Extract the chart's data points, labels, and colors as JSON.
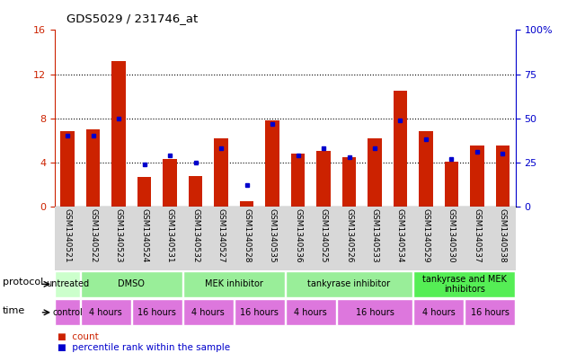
{
  "title": "GDS5029 / 231746_at",
  "samples": [
    "GSM1340521",
    "GSM1340522",
    "GSM1340523",
    "GSM1340524",
    "GSM1340531",
    "GSM1340532",
    "GSM1340527",
    "GSM1340528",
    "GSM1340535",
    "GSM1340536",
    "GSM1340525",
    "GSM1340526",
    "GSM1340533",
    "GSM1340534",
    "GSM1340529",
    "GSM1340530",
    "GSM1340537",
    "GSM1340538"
  ],
  "count_values": [
    6.8,
    7.0,
    13.2,
    2.7,
    4.3,
    2.8,
    6.2,
    0.5,
    7.8,
    4.8,
    5.0,
    4.5,
    6.2,
    10.5,
    6.8,
    4.1,
    5.5,
    5.5
  ],
  "percentile_values": [
    40,
    40,
    50,
    24,
    29,
    25,
    33,
    12,
    47,
    29,
    33,
    28,
    33,
    49,
    38,
    27,
    31,
    30
  ],
  "ylim_left": [
    0,
    16
  ],
  "ylim_right": [
    0,
    100
  ],
  "yticks_left": [
    0,
    4,
    8,
    12,
    16
  ],
  "yticks_right": [
    0,
    25,
    50,
    75,
    100
  ],
  "bar_color": "#cc2200",
  "dot_color": "#0000cc",
  "protocol_groups": [
    {
      "label": "untreated",
      "start": 0,
      "end": 1,
      "color": "#ccffcc"
    },
    {
      "label": "DMSO",
      "start": 1,
      "end": 5,
      "color": "#99ee99"
    },
    {
      "label": "MEK inhibitor",
      "start": 5,
      "end": 9,
      "color": "#99ee99"
    },
    {
      "label": "tankyrase inhibitor",
      "start": 9,
      "end": 14,
      "color": "#99ee99"
    },
    {
      "label": "tankyrase and MEK\ninhibitors",
      "start": 14,
      "end": 18,
      "color": "#55ee55"
    }
  ],
  "time_groups": [
    {
      "label": "control",
      "start": 0,
      "end": 1
    },
    {
      "label": "4 hours",
      "start": 1,
      "end": 3
    },
    {
      "label": "16 hours",
      "start": 3,
      "end": 5
    },
    {
      "label": "4 hours",
      "start": 5,
      "end": 7
    },
    {
      "label": "16 hours",
      "start": 7,
      "end": 9
    },
    {
      "label": "4 hours",
      "start": 9,
      "end": 11
    },
    {
      "label": "16 hours",
      "start": 11,
      "end": 14
    },
    {
      "label": "4 hours",
      "start": 14,
      "end": 16
    },
    {
      "label": "16 hours",
      "start": 16,
      "end": 18
    }
  ],
  "left_axis_color": "#cc2200",
  "right_axis_color": "#0000cc",
  "time_color": "#dd77dd",
  "grid_yticks": [
    4,
    8,
    12
  ]
}
